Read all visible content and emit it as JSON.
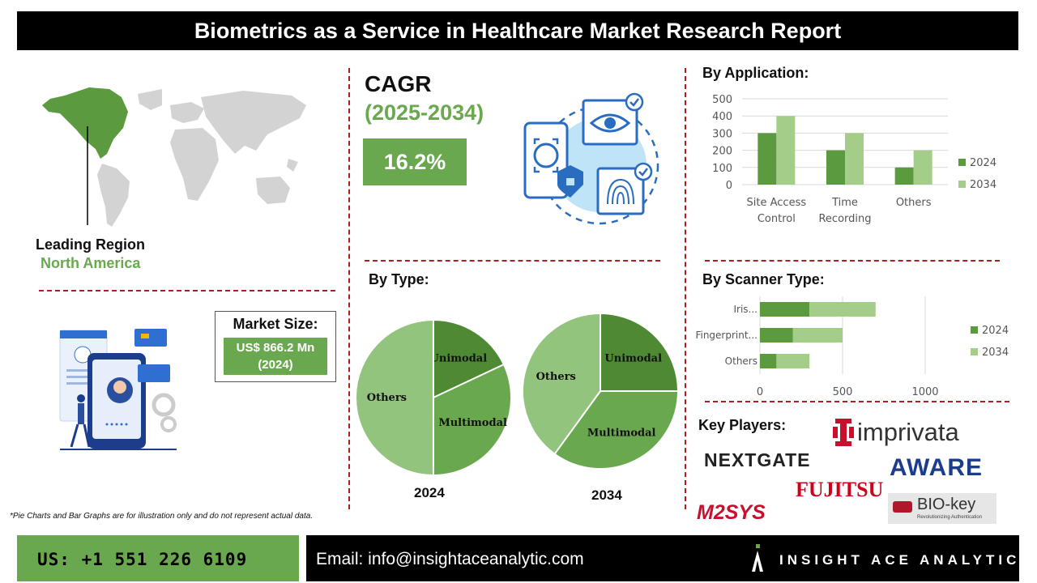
{
  "header": {
    "title": "Biometrics as a Service in Healthcare Market Research Report"
  },
  "region": {
    "label": "Leading Region",
    "value": "North America"
  },
  "market": {
    "label": "Market Size:",
    "value": "US$ 866.2 Mn",
    "year": "(2024)"
  },
  "cagr": {
    "label": "CAGR",
    "period": "(2025-2034)",
    "value": "16.2%"
  },
  "sections": {
    "application": "By Application:",
    "type": "By Type:",
    "scanner": "By Scanner Type:",
    "players": "Key Players:"
  },
  "key_players": [
    "imprivata",
    "NEXTGATE",
    "AWARE",
    "FUJITSU",
    "BIO-key",
    "M2SYS"
  ],
  "key_players_taglines": {
    "biokey": "Revolutionizing Authentication"
  },
  "footnote": "*Pie Charts and Bar Graphs are for illustration only and do not represent actual data.",
  "footer": {
    "phone": "US: +1 551 226 6109",
    "email": "Email: info@insightaceanalytic.com",
    "brand": "INSIGHT ACE ANALYTIC"
  },
  "colors": {
    "dark_green": "#5b9a3e",
    "light_green": "#a5cd8a",
    "mid_green": "#6aa84f",
    "accent_red": "#b01c22"
  },
  "chart_data": [
    {
      "id": "by-application",
      "type": "bar",
      "categories": [
        "Site Access Control",
        "Time Recording",
        "Others"
      ],
      "category_lines": [
        [
          "Site Access",
          "Control"
        ],
        [
          "Time",
          "Recording"
        ],
        [
          "Others"
        ]
      ],
      "series": [
        {
          "name": "2024",
          "values": [
            300,
            200,
            100
          ]
        },
        {
          "name": "2034",
          "values": [
            400,
            300,
            200
          ]
        }
      ],
      "ylim": [
        0,
        500
      ],
      "yticks": [
        "0",
        "100",
        "200",
        "300",
        "400",
        "500"
      ],
      "grid": true,
      "legend": "right"
    },
    {
      "id": "by-scanner-type",
      "type": "bar",
      "orientation": "horizontal",
      "stacked": true,
      "categories": [
        "Iris...",
        "Fingerprint...",
        "Others"
      ],
      "series": [
        {
          "name": "2024",
          "values": [
            300,
            200,
            100
          ]
        },
        {
          "name": "2034",
          "values": [
            400,
            300,
            200
          ]
        }
      ],
      "xlim": [
        0,
        1000
      ],
      "xticks": [
        "0",
        "500",
        "1000"
      ],
      "grid": true,
      "legend": "right"
    },
    {
      "id": "by-type-2024",
      "type": "pie",
      "year_label": "2024",
      "slices": [
        {
          "label": "Unimodal",
          "value": 18
        },
        {
          "label": "Multimodal",
          "value": 32
        },
        {
          "label": "Others",
          "value": 50
        }
      ]
    },
    {
      "id": "by-type-2034",
      "type": "pie",
      "year_label": "2034",
      "slices": [
        {
          "label": "Unimodal",
          "value": 25
        },
        {
          "label": "Multimodal",
          "value": 35
        },
        {
          "label": "Others",
          "value": 40
        }
      ]
    }
  ]
}
